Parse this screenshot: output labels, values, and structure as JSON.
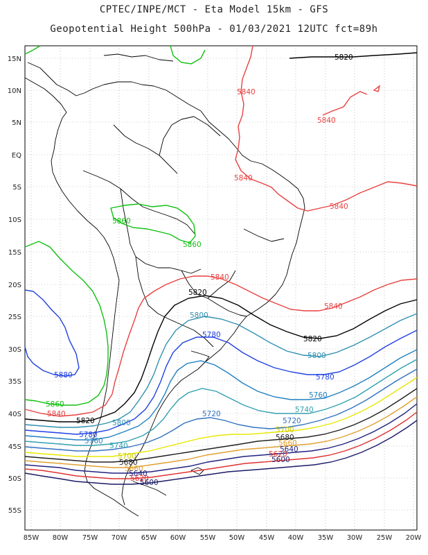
{
  "header": {
    "line1": "CPTEC/INPE/MCT  -   Eta Model 15km  -  GFS",
    "line2": "Geopotential Height 500hPa - 01/03/2021 12UTC fct=89h"
  },
  "colors": {
    "c5600": "#1a1a66",
    "c5620": "#e03030",
    "c5640": "#202080",
    "c5660": "#e0a030",
    "c5680": "#202020",
    "c5700": "#e8e800",
    "c5720": "#3070c0",
    "c5740": "#30a0b0",
    "c5760": "#2080c0",
    "c5780": "#2040e0",
    "c5800": "#3090b0",
    "c5820": "#000000",
    "c5840": "#e84040",
    "c5860": "#10c010",
    "c5880_blue": "#2040e0",
    "coast": "#000000",
    "grid": "#888888"
  },
  "axes": {
    "lat_labels": [
      "15N",
      "10N",
      "5N",
      "EQ",
      "5S",
      "10S",
      "15S",
      "20S",
      "25S",
      "30S",
      "35S",
      "40S",
      "45S",
      "50S",
      "55S"
    ],
    "lon_labels": [
      "85W",
      "80W",
      "75W",
      "70W",
      "65W",
      "60W",
      "55W",
      "50W",
      "45W",
      "40W",
      "35W",
      "30W",
      "25W",
      "20W"
    ]
  },
  "contour_labels": [
    {
      "text": "5820",
      "color": "#000000"
    },
    {
      "text": "5840",
      "color": "#e84040"
    },
    {
      "text": "5840",
      "color": "#e84040"
    },
    {
      "text": "5840",
      "color": "#e84040"
    },
    {
      "text": "5840",
      "color": "#e84040"
    },
    {
      "text": "5840",
      "color": "#e84040"
    },
    {
      "text": "5840",
      "color": "#e84040"
    },
    {
      "text": "5860",
      "color": "#10c010"
    },
    {
      "text": "5860",
      "color": "#10c010"
    },
    {
      "text": "5880",
      "color": "#2040e0"
    },
    {
      "text": "5860",
      "color": "#10c010"
    },
    {
      "text": "5840",
      "color": "#e84040"
    },
    {
      "text": "5820",
      "color": "#000000"
    },
    {
      "text": "5820",
      "color": "#000000"
    },
    {
      "text": "5820",
      "color": "#000000"
    },
    {
      "text": "5800",
      "color": "#3090b0"
    },
    {
      "text": "5780",
      "color": "#2040e0"
    },
    {
      "text": "5800",
      "color": "#3090b0"
    },
    {
      "text": "5780",
      "color": "#2040e0"
    },
    {
      "text": "5760",
      "color": "#2080c0"
    },
    {
      "text": "5740",
      "color": "#30a0b0"
    },
    {
      "text": "5720",
      "color": "#3070c0"
    },
    {
      "text": "5720",
      "color": "#3070c0"
    },
    {
      "text": "5700",
      "color": "#c8c800"
    },
    {
      "text": "5680",
      "color": "#202020"
    },
    {
      "text": "5660",
      "color": "#e0a030"
    },
    {
      "text": "5640",
      "color": "#202080"
    },
    {
      "text": "5620",
      "color": "#e03030"
    },
    {
      "text": "5600",
      "color": "#1a1a66"
    },
    {
      "text": "5800",
      "color": "#3090b0"
    },
    {
      "text": "5780",
      "color": "#2040e0"
    },
    {
      "text": "5760",
      "color": "#2080c0"
    },
    {
      "text": "5740",
      "color": "#30a0b0"
    },
    {
      "text": "5700",
      "color": "#c8c800"
    },
    {
      "text": "5680",
      "color": "#202020"
    },
    {
      "text": "5660",
      "color": "#e0a030"
    },
    {
      "text": "5640",
      "color": "#202080"
    },
    {
      "text": "5620",
      "color": "#e03030"
    },
    {
      "text": "5600",
      "color": "#1a1a66"
    }
  ]
}
